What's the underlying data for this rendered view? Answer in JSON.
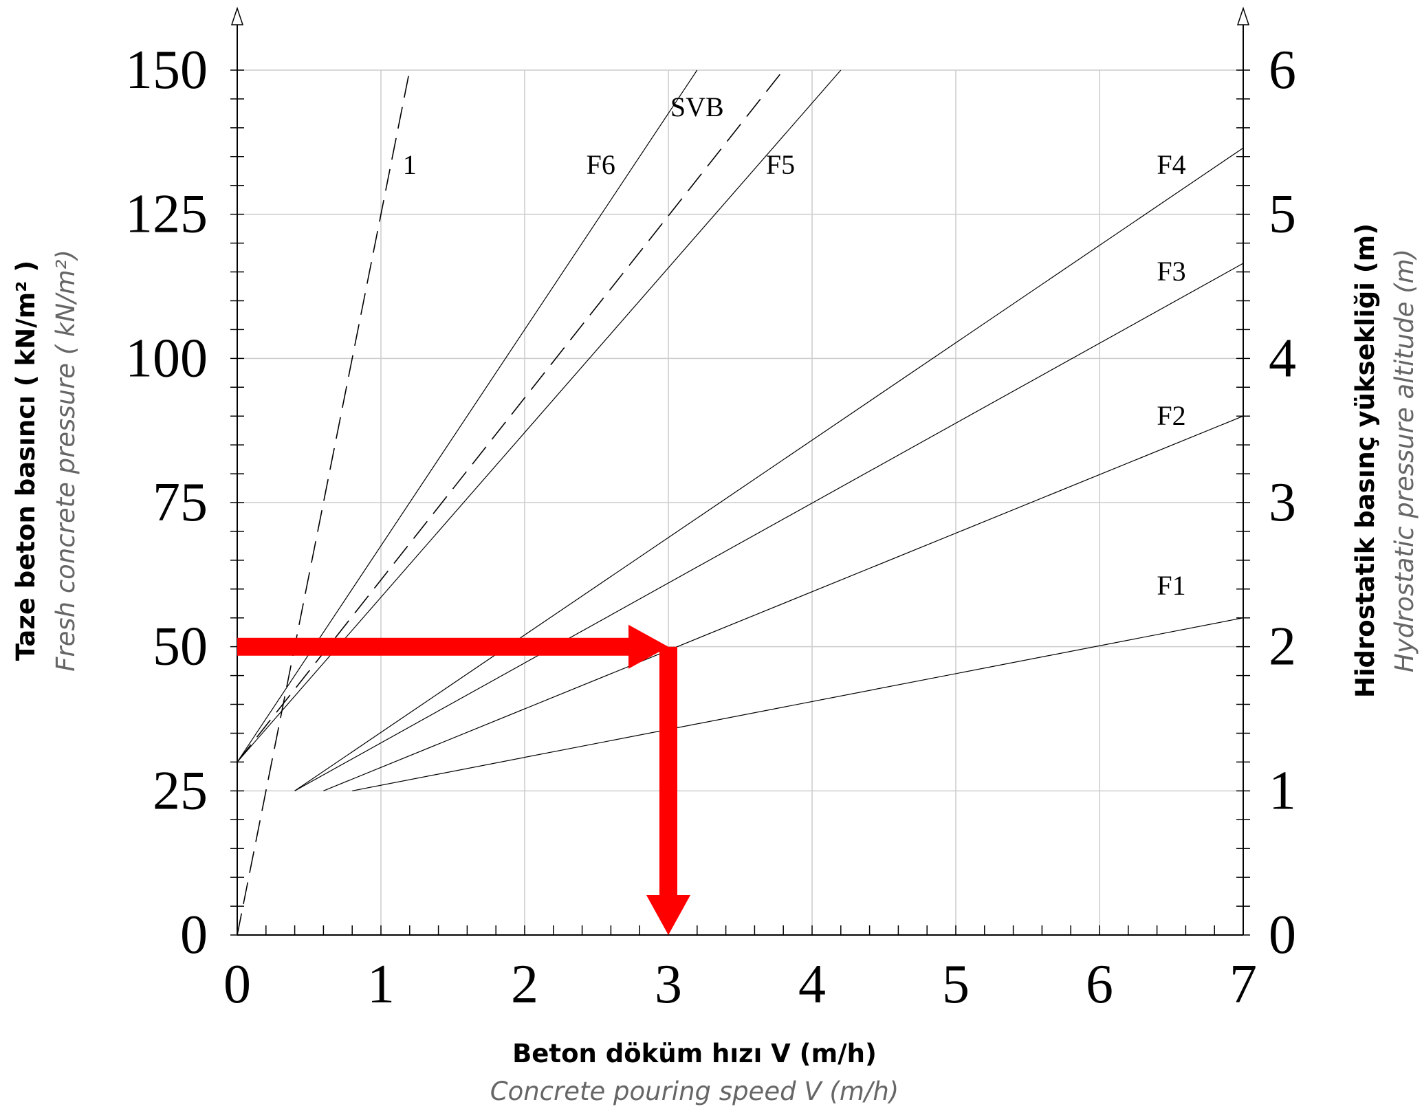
{
  "chart_data": {
    "type": "line",
    "xlabel": "Beton döküm hızı V (m/h)",
    "xlabel_en": "Concrete pouring speed V (m/h)",
    "ylabel": "Taze beton basıncı ( kN/m² )",
    "ylabel_en": "Fresh concrete pressure ( kN/m²)",
    "y2label": "Hidrostatik basınç yüksekliği (m)",
    "y2label_en": "Hydrostatic pressure altitude (m)",
    "xlim": [
      0,
      7
    ],
    "ylim": [
      0,
      150
    ],
    "y2lim": [
      0,
      6
    ],
    "x_ticks": [
      "0",
      "1",
      "2",
      "3",
      "4",
      "5",
      "6",
      "7"
    ],
    "y_ticks": [
      "0",
      "25",
      "50",
      "75",
      "100",
      "125",
      "150"
    ],
    "y2_ticks": [
      "0",
      "1",
      "2",
      "3",
      "4",
      "5",
      "6"
    ],
    "grid": true,
    "series": [
      {
        "name": "1",
        "style": "dashed",
        "label_at": [
          1.2,
          132
        ],
        "points": [
          [
            0,
            0
          ],
          [
            1.2,
            150
          ]
        ]
      },
      {
        "name": "F6",
        "style": "solid",
        "label_at": [
          2.53,
          132
        ],
        "points": [
          [
            0,
            30
          ],
          [
            3.2,
            150
          ]
        ]
      },
      {
        "name": "SVB",
        "style": "dashed",
        "label_at": [
          3.2,
          142
        ],
        "points": [
          [
            0,
            30
          ],
          [
            3.8,
            150
          ]
        ]
      },
      {
        "name": "F5",
        "style": "solid",
        "label_at": [
          3.78,
          132
        ],
        "points": [
          [
            0,
            30
          ],
          [
            4.2,
            150
          ]
        ]
      },
      {
        "name": "F4",
        "style": "solid",
        "label_at": [
          6.5,
          132
        ],
        "points": [
          [
            0.4,
            25
          ],
          [
            7,
            136.5
          ]
        ]
      },
      {
        "name": "F3",
        "style": "solid",
        "label_at": [
          6.5,
          113.5
        ],
        "points": [
          [
            0.4,
            25
          ],
          [
            7,
            116.5
          ]
        ]
      },
      {
        "name": "F2",
        "style": "solid",
        "label_at": [
          6.5,
          88.5
        ],
        "points": [
          [
            0.6,
            25
          ],
          [
            7,
            90
          ]
        ]
      },
      {
        "name": "F1",
        "style": "solid",
        "label_at": [
          6.5,
          59
        ],
        "points": [
          [
            0.8,
            25
          ],
          [
            7,
            55
          ]
        ]
      }
    ],
    "annotations": [
      {
        "type": "arrow",
        "color": "#ff0000",
        "from": [
          0,
          50
        ],
        "to": [
          3,
          50
        ]
      },
      {
        "type": "arrow",
        "color": "#ff0000",
        "from": [
          3,
          50
        ],
        "to": [
          3,
          0
        ]
      }
    ]
  }
}
